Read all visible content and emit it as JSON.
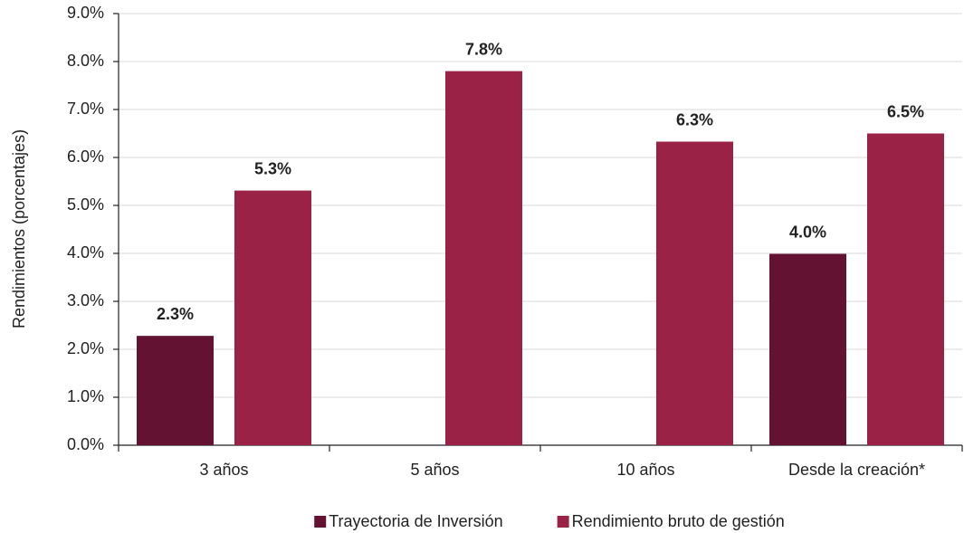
{
  "chart_data": {
    "type": "bar",
    "y_label": "Rendimientos (porcentajes)",
    "categories": [
      "3 años",
      "5 años",
      "10 años",
      "Desde la creación*"
    ],
    "series": [
      {
        "name": "Trayectoria de Inversión",
        "color": "#641232",
        "values": [
          2.28,
          null,
          null,
          3.99
        ],
        "value_labels": [
          "2.3%",
          null,
          null,
          "4.0%"
        ]
      },
      {
        "name": "Rendimiento bruto de gestión",
        "color": "#9b2247",
        "values": [
          5.31,
          7.8,
          6.33,
          6.5
        ],
        "value_labels": [
          "5.3%",
          "7.8%",
          "6.3%",
          "6.5%"
        ]
      }
    ],
    "ylim": [
      0,
      9
    ],
    "yticks": [
      {
        "value": 0,
        "label": "0.0%"
      },
      {
        "value": 1,
        "label": "1.0%"
      },
      {
        "value": 2,
        "label": "2.0%"
      },
      {
        "value": 3,
        "label": "3.0%"
      },
      {
        "value": 4,
        "label": "4.0%"
      },
      {
        "value": 5,
        "label": "5.0%"
      },
      {
        "value": 6,
        "label": "6.0%"
      },
      {
        "value": 7,
        "label": "7.0%"
      },
      {
        "value": 8,
        "label": "8.0%"
      },
      {
        "value": 9,
        "label": "9.0%"
      }
    ],
    "grid": true,
    "legend": "bottom"
  }
}
